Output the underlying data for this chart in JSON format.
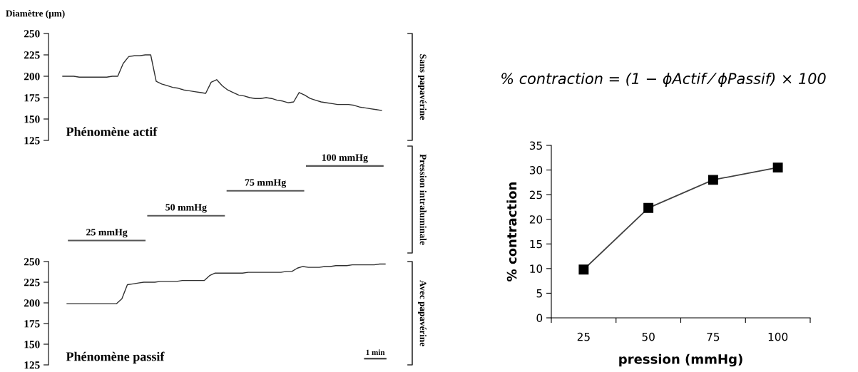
{
  "chart_data": [
    {
      "type": "line",
      "ylabel": "Diamètre (µm)",
      "ylim": [
        125,
        250
      ],
      "yticks": [
        125,
        150,
        175,
        200,
        225,
        250
      ],
      "tick_labels": "y",
      "categories": [
        null,
        null,
        null,
        null,
        null,
        null,
        null,
        null,
        null,
        null,
        null,
        null,
        null,
        null,
        null,
        null,
        null,
        null,
        null,
        null,
        null,
        null,
        null,
        null,
        null,
        null,
        null,
        null,
        null,
        null,
        null,
        null,
        null,
        null,
        null,
        null,
        null,
        null,
        null,
        null,
        null,
        null,
        null,
        null,
        null,
        null,
        null,
        null,
        null,
        null,
        null,
        null,
        null,
        null,
        null,
        null,
        null,
        null,
        null
      ],
      "series": [
        {
          "color": "#303030",
          "values": [
            200,
            200,
            200,
            199,
            199,
            199,
            199,
            199,
            199,
            200,
            200,
            215,
            223,
            224,
            224,
            225,
            225,
            194,
            191,
            189,
            187,
            186,
            184,
            183,
            182,
            181,
            180,
            193,
            196,
            189,
            184,
            181,
            178,
            177,
            175,
            174,
            174,
            175,
            174,
            172,
            171,
            169,
            170,
            181,
            178,
            174,
            172,
            170,
            169,
            168,
            167,
            167,
            167,
            166,
            164,
            163,
            162,
            161,
            160
          ]
        }
      ],
      "annotations": [
        "Phénomène actif",
        "Sans papavérine"
      ]
    },
    {
      "type": "other",
      "categories": [
        "25 mmHg",
        "50 mmHg",
        "75 mmHg",
        "100 mmHg"
      ],
      "annotations": [
        "Pression intraluminale"
      ]
    },
    {
      "type": "line",
      "ylim": [
        125,
        250
      ],
      "yticks": [
        125,
        150,
        175,
        200,
        225,
        250
      ],
      "tick_labels": "y",
      "categories": [
        null,
        null,
        null,
        null,
        null,
        null,
        null,
        null,
        null,
        null,
        null,
        null,
        null,
        null,
        null,
        null,
        null,
        null,
        null,
        null,
        null,
        null,
        null,
        null,
        null,
        null,
        null,
        null,
        null,
        null,
        null,
        null,
        null,
        null,
        null,
        null,
        null,
        null,
        null,
        null,
        null,
        null,
        null,
        null,
        null,
        null,
        null,
        null,
        null,
        null,
        null,
        null,
        null,
        null,
        null,
        null,
        null,
        null,
        null
      ],
      "series": [
        {
          "color": "#303030",
          "values": [
            199,
            199,
            199,
            199,
            199,
            199,
            199,
            199,
            199,
            199,
            205,
            222,
            223,
            224,
            225,
            225,
            225,
            226,
            226,
            226,
            226,
            227,
            227,
            227,
            227,
            227,
            233,
            236,
            236,
            236,
            236,
            236,
            236,
            237,
            237,
            237,
            237,
            237,
            237,
            237,
            238,
            238,
            242,
            244,
            243,
            243,
            243,
            244,
            244,
            245,
            245,
            245,
            246,
            246,
            246,
            246,
            246,
            247,
            247
          ]
        }
      ],
      "annotations": [
        "Phénomène passif",
        "Avec papavérine",
        "1 min"
      ]
    },
    {
      "type": "line",
      "title": "% contraction = (1 − ϕActif ⁄ ϕPassif) × 100",
      "xlabel": "pression (mmHg)",
      "ylabel": "% contraction",
      "categories": [
        "25",
        "50",
        "75",
        "100"
      ],
      "ylim": [
        0,
        35
      ],
      "yticks": [
        0,
        5,
        10,
        15,
        20,
        25,
        30,
        35
      ],
      "marker": "square",
      "grid": false,
      "series": [
        {
          "color": "#404040",
          "values": [
            9.8,
            22.3,
            28.0,
            30.5
          ]
        }
      ]
    }
  ]
}
